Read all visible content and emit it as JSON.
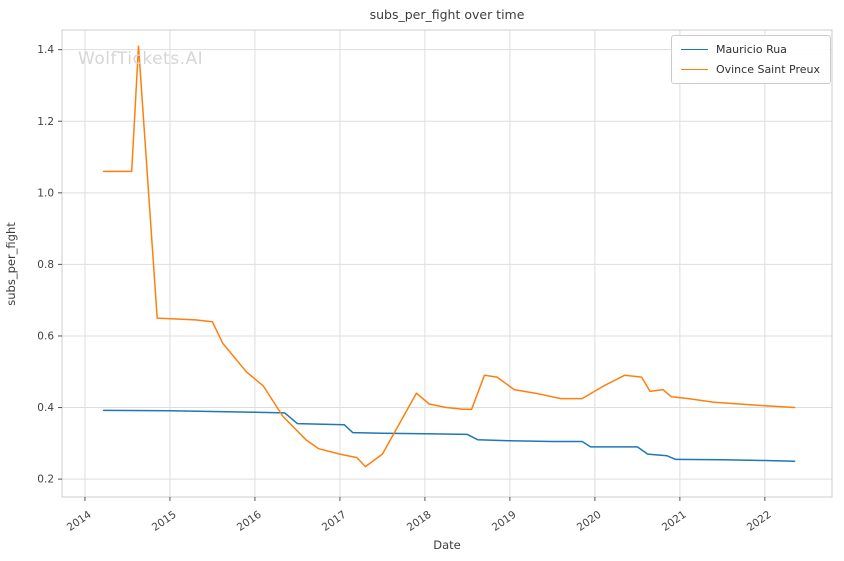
{
  "watermark": "WolfTickets.AI",
  "chart_data": {
    "type": "line",
    "title": "subs_per_fight over time",
    "xlabel": "Date",
    "ylabel": "subs_per_fight",
    "xlim": [
      2013.73,
      2022.79
    ],
    "ylim": [
      0.15,
      1.455
    ],
    "xticks": [
      2014,
      2015,
      2016,
      2017,
      2018,
      2019,
      2020,
      2021,
      2022
    ],
    "yticks": [
      0.2,
      0.4,
      0.6,
      0.8,
      1.0,
      1.2,
      1.4
    ],
    "grid": true,
    "legend_position": "upper right",
    "colors": {
      "grid": "#dedede",
      "spine": "#cccccc",
      "tick": "#555555",
      "mauricio_rua": "#1f77b4",
      "ovince_saint_preux": "#ff7f0e"
    },
    "series": [
      {
        "name": "Mauricio Rua",
        "color": "#1f77b4",
        "points": [
          [
            2014.22,
            0.392
          ],
          [
            2015.0,
            0.391
          ],
          [
            2015.5,
            0.389
          ],
          [
            2016.0,
            0.387
          ],
          [
            2016.35,
            0.385
          ],
          [
            2016.5,
            0.355
          ],
          [
            2017.05,
            0.352
          ],
          [
            2017.15,
            0.33
          ],
          [
            2017.5,
            0.328
          ],
          [
            2018.0,
            0.327
          ],
          [
            2018.5,
            0.325
          ],
          [
            2018.62,
            0.31
          ],
          [
            2019.0,
            0.307
          ],
          [
            2019.5,
            0.305
          ],
          [
            2019.85,
            0.305
          ],
          [
            2019.95,
            0.29
          ],
          [
            2020.5,
            0.29
          ],
          [
            2020.62,
            0.27
          ],
          [
            2020.85,
            0.265
          ],
          [
            2020.95,
            0.255
          ],
          [
            2021.5,
            0.254
          ],
          [
            2022.0,
            0.252
          ],
          [
            2022.35,
            0.25
          ]
        ]
      },
      {
        "name": "Ovince Saint Preux",
        "color": "#ff7f0e",
        "points": [
          [
            2014.22,
            1.06
          ],
          [
            2014.55,
            1.06
          ],
          [
            2014.63,
            1.41
          ],
          [
            2014.85,
            0.65
          ],
          [
            2015.3,
            0.645
          ],
          [
            2015.5,
            0.64
          ],
          [
            2015.62,
            0.58
          ],
          [
            2015.9,
            0.5
          ],
          [
            2016.1,
            0.46
          ],
          [
            2016.33,
            0.375
          ],
          [
            2016.6,
            0.31
          ],
          [
            2016.75,
            0.285
          ],
          [
            2017.0,
            0.27
          ],
          [
            2017.2,
            0.26
          ],
          [
            2017.3,
            0.235
          ],
          [
            2017.5,
            0.27
          ],
          [
            2017.9,
            0.44
          ],
          [
            2018.05,
            0.41
          ],
          [
            2018.25,
            0.4
          ],
          [
            2018.45,
            0.395
          ],
          [
            2018.55,
            0.395
          ],
          [
            2018.7,
            0.49
          ],
          [
            2018.85,
            0.485
          ],
          [
            2019.05,
            0.45
          ],
          [
            2019.3,
            0.44
          ],
          [
            2019.6,
            0.425
          ],
          [
            2019.85,
            0.425
          ],
          [
            2020.1,
            0.46
          ],
          [
            2020.35,
            0.49
          ],
          [
            2020.55,
            0.485
          ],
          [
            2020.65,
            0.445
          ],
          [
            2020.8,
            0.45
          ],
          [
            2020.9,
            0.43
          ],
          [
            2021.1,
            0.425
          ],
          [
            2021.4,
            0.415
          ],
          [
            2021.7,
            0.41
          ],
          [
            2022.0,
            0.405
          ],
          [
            2022.35,
            0.4
          ]
        ]
      }
    ]
  }
}
